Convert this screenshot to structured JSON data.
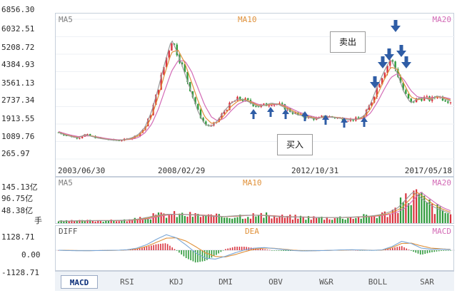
{
  "main_chart": {
    "y_labels": [
      "6856.30",
      "6032.51",
      "5208.72",
      "4384.93",
      "3561.13",
      "2737.34",
      "1913.55",
      "1089.76",
      "265.97"
    ],
    "ma5_label": "MA5",
    "ma10_label": "MA10",
    "ma20_label": "MA20",
    "dates": [
      "2003/06/30",
      "2008/02/29",
      "2012/10/31",
      "2017/05/18"
    ],
    "sell_annotation": "卖出",
    "buy_annotation": "买入"
  },
  "volume_chart": {
    "y_labels": [
      "145.13亿",
      "96.75亿",
      "48.38亿",
      "手"
    ],
    "ma5_label": "MA5",
    "ma10_label": "MA10",
    "ma20_label": "MA20"
  },
  "macd_chart": {
    "y_labels": [
      "1128.71",
      "0.00",
      "-1128.71"
    ],
    "diff_label": "DIFF",
    "dea_label": "DEA",
    "macd_label": "MACD"
  },
  "tabs": [
    {
      "label": "MACD",
      "active": true
    },
    {
      "label": "RSI",
      "active": false
    },
    {
      "label": "KDJ",
      "active": false
    },
    {
      "label": "DMI",
      "active": false
    },
    {
      "label": "OBV",
      "active": false
    },
    {
      "label": "W&R",
      "active": false
    },
    {
      "label": "BOLL",
      "active": false
    },
    {
      "label": "SAR",
      "active": false
    }
  ],
  "colors": {
    "up": "#d9333f",
    "down": "#2f9a3c",
    "ma5": "#9a9a9a",
    "ma10": "#e0913a",
    "ma20": "#d36bb6",
    "arrow": "#2f5da6",
    "border": "#c6cfdb"
  },
  "chart_data": [
    {
      "type": "candlestick",
      "title": "",
      "ylim": [
        265.97,
        6856.3
      ],
      "x_ticks": [
        "2003/06/30",
        "2008/02/29",
        "2012/10/31",
        "2017/05/18"
      ],
      "series": [
        {
          "name": "MA5",
          "x_range": [
            "2003/06/30",
            "2017/05/18"
          ],
          "values": [
            1520,
            1400,
            1320,
            1260,
            1420,
            1330,
            1250,
            1200,
            1160,
            1140,
            1180,
            1260,
            1420,
            1760,
            2500,
            3600,
            4800,
            5900,
            5200,
            4300,
            3400,
            2500,
            1900,
            1800,
            2100,
            2550,
            2900,
            3100,
            3050,
            2900,
            2750,
            2800,
            2900,
            2850,
            2700,
            2500,
            2350,
            2280,
            2200,
            2150,
            2300,
            2250,
            2200,
            2150,
            2120,
            2150,
            2300,
            2900,
            3700,
            4400,
            5000,
            4300,
            3400,
            2900,
            3100,
            3150,
            3050,
            3250,
            3100,
            3000
          ]
        },
        {
          "name": "MA10",
          "values": [
            1530,
            1420,
            1340,
            1280,
            1400,
            1350,
            1270,
            1210,
            1170,
            1150,
            1170,
            1230,
            1360,
            1650,
            2250,
            3200,
            4300,
            5300,
            5400,
            4800,
            3900,
            3000,
            2250,
            1950,
            2000,
            2350,
            2750,
            3000,
            3080,
            2950,
            2800,
            2790,
            2850,
            2870,
            2750,
            2580,
            2420,
            2320,
            2240,
            2170,
            2250,
            2260,
            2220,
            2170,
            2130,
            2140,
            2230,
            2650,
            3300,
            4000,
            4600,
            4500,
            3800,
            3200,
            3050,
            3150,
            3100,
            3200,
            3150,
            3050
          ]
        },
        {
          "name": "MA20",
          "values": [
            1560,
            1460,
            1380,
            1320,
            1360,
            1350,
            1300,
            1240,
            1200,
            1170,
            1170,
            1200,
            1280,
            1500,
            1900,
            2600,
            3500,
            4400,
            4900,
            4900,
            4400,
            3600,
            2800,
            2250,
            2050,
            2200,
            2550,
            2850,
            3000,
            2980,
            2850,
            2800,
            2820,
            2850,
            2800,
            2650,
            2500,
            2380,
            2290,
            2210,
            2220,
            2240,
            2230,
            2190,
            2150,
            2140,
            2180,
            2450,
            2950,
            3550,
            4100,
            4300,
            4000,
            3500,
            3200,
            3150,
            3150,
            3200,
            3180,
            3100
          ]
        }
      ],
      "annotations": [
        "卖出",
        "买入"
      ]
    },
    {
      "type": "bar",
      "title": "",
      "ylim": [
        0,
        145.13
      ],
      "y_ticks": [
        "145.13亿",
        "96.75亿",
        "48.38亿"
      ],
      "series": [
        {
          "name": "MA5",
          "values": [
            8,
            8,
            9,
            9,
            10,
            10,
            10,
            10,
            11,
            12,
            14,
            18,
            24,
            30,
            34,
            35,
            34,
            33,
            32,
            30,
            28,
            26,
            26,
            28,
            30,
            31,
            31,
            30,
            28,
            26,
            25,
            24,
            24,
            23,
            22,
            22,
            22,
            22,
            23,
            24,
            25,
            27,
            30,
            35,
            45,
            60,
            90,
            122,
            100,
            78,
            60,
            48,
            38
          ]
        },
        {
          "name": "MA10"
        },
        {
          "name": "MA20"
        }
      ]
    },
    {
      "type": "bar",
      "title": "",
      "ylim": [
        -1128.71,
        1128.71
      ],
      "y_ticks": [
        "1128.71",
        "0.00",
        "-1128.71"
      ],
      "series": [
        {
          "name": "DIFF",
          "values": [
            0,
            -20,
            -30,
            -30,
            -20,
            -10,
            0,
            30,
            120,
            320,
            620,
            880,
            700,
            300,
            -150,
            -450,
            -500,
            -350,
            -150,
            20,
            120,
            150,
            100,
            40,
            -20,
            -40,
            -30,
            -20,
            0,
            20,
            30,
            10,
            -10,
            20,
            200,
            500,
            380,
            120,
            60,
            60,
            40
          ]
        },
        {
          "name": "DEA",
          "values": [
            0,
            -10,
            -20,
            -25,
            -20,
            -15,
            -5,
            20,
            80,
            220,
            450,
            680,
            700,
            520,
            200,
            -150,
            -350,
            -380,
            -250,
            -80,
            60,
            120,
            110,
            60,
            0,
            -30,
            -30,
            -20,
            -5,
            10,
            20,
            15,
            0,
            10,
            140,
            380,
            400,
            250,
            120,
            80,
            50
          ]
        },
        {
          "name": "MACD"
        }
      ]
    }
  ]
}
